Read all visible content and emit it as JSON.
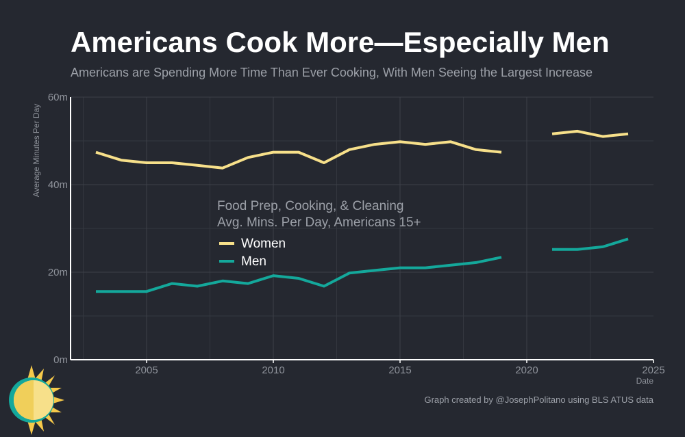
{
  "header": {
    "title": "Americans Cook More—Especially Men",
    "subtitle": "Americans are Spending More Time Than Ever Cooking, With Men Seeing the Largest Increase"
  },
  "caption": "Graph created by @JosephPolitano using BLS ATUS data",
  "logo": {
    "icon": "sun-icon"
  },
  "chart_data": {
    "type": "line",
    "title": "Americans Cook More—Especially Men",
    "subtitle": "Americans are Spending More Time Than Ever Cooking, With Men Seeing the Largest Increase",
    "xlabel": "Date",
    "ylabel": "Average Minutes Per Day",
    "xlim": [
      2002,
      2025
    ],
    "ylim": [
      0,
      60
    ],
    "x_ticks": [
      2005,
      2010,
      2015,
      2020,
      2025
    ],
    "y_ticks": [
      0,
      20,
      40,
      60
    ],
    "y_tick_labels": [
      "0m",
      "20m",
      "40m",
      "60m"
    ],
    "grid": true,
    "legend": {
      "title_lines": [
        "Food Prep, Cooking, & Cleaning",
        "Avg. Mins. Per Day, Americans 15+"
      ],
      "placement": "center"
    },
    "series": [
      {
        "name": "Women",
        "color": "#f7e08a",
        "points": [
          [
            2003,
            47.4
          ],
          [
            2004,
            45.6
          ],
          [
            2005,
            45.0
          ],
          [
            2006,
            45.0
          ],
          [
            2007,
            44.4
          ],
          [
            2008,
            43.8
          ],
          [
            2009,
            46.2
          ],
          [
            2010,
            47.4
          ],
          [
            2011,
            47.4
          ],
          [
            2012,
            45.0
          ],
          [
            2013,
            48.0
          ],
          [
            2014,
            49.2
          ],
          [
            2015,
            49.8
          ],
          [
            2016,
            49.2
          ],
          [
            2017,
            49.8
          ],
          [
            2018,
            48.0
          ],
          [
            2019,
            47.4
          ],
          [
            2020,
            null
          ],
          [
            2021,
            51.6
          ],
          [
            2022,
            52.2
          ],
          [
            2023,
            51.0
          ],
          [
            2024,
            51.6
          ]
        ]
      },
      {
        "name": "Men",
        "color": "#14a89b",
        "points": [
          [
            2003,
            15.6
          ],
          [
            2004,
            15.6
          ],
          [
            2005,
            15.6
          ],
          [
            2006,
            17.4
          ],
          [
            2007,
            16.8
          ],
          [
            2008,
            18.0
          ],
          [
            2009,
            17.4
          ],
          [
            2010,
            19.2
          ],
          [
            2011,
            18.6
          ],
          [
            2012,
            16.8
          ],
          [
            2013,
            19.8
          ],
          [
            2014,
            20.4
          ],
          [
            2015,
            21.0
          ],
          [
            2016,
            21.0
          ],
          [
            2017,
            21.6
          ],
          [
            2018,
            22.2
          ],
          [
            2019,
            23.4
          ],
          [
            2020,
            null
          ],
          [
            2021,
            25.2
          ],
          [
            2022,
            25.2
          ],
          [
            2023,
            25.8
          ],
          [
            2024,
            27.6
          ]
        ]
      }
    ]
  }
}
